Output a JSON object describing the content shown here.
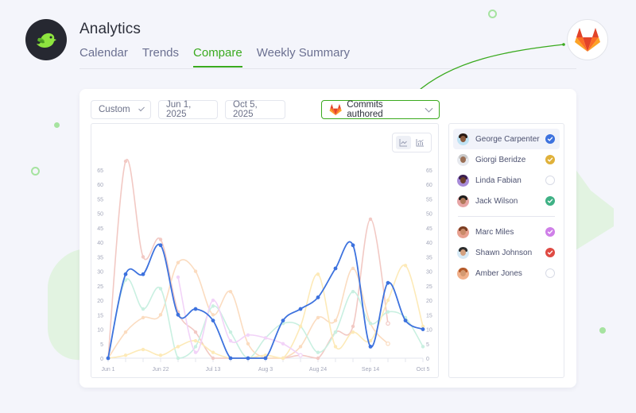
{
  "app": {
    "title": "Analytics",
    "logo_icon": "bird-logo-icon"
  },
  "tabs": [
    {
      "label": "Calendar",
      "active": false
    },
    {
      "label": "Trends",
      "active": false
    },
    {
      "label": "Compare",
      "active": true
    },
    {
      "label": "Weekly Summary",
      "active": false
    }
  ],
  "integration": {
    "icon": "gitlab-icon"
  },
  "controls": {
    "range_select": "Custom",
    "start_date": "Jun 1, 2025",
    "end_date": "Oct 5, 2025",
    "metric_select": "Commits authored",
    "metric_icon": "gitlab-icon"
  },
  "chart_toggle": {
    "options": [
      "line-chart-icon",
      "bar-chart-icon"
    ],
    "active": 0
  },
  "people": [
    {
      "name": "George Carpenter",
      "color": "#3d72de",
      "checked": true,
      "selected": true,
      "skin": "#8a5a3c",
      "hair": "#2a1a12",
      "bg": "#bfe3f4"
    },
    {
      "name": "Giorgi Beridze",
      "color": "#e0b13a",
      "checked": true,
      "selected": false,
      "skin": "#9a6f55",
      "hair": "#c9c9c9",
      "bg": "#e7e9ee"
    },
    {
      "name": "Linda Fabian",
      "color": "#d8dbe6",
      "checked": false,
      "selected": false,
      "skin": "#6b3e2a",
      "hair": "#3a1f4d",
      "bg": "#a88bd8"
    },
    {
      "name": "Jack Wilson",
      "color": "#3fb185",
      "checked": true,
      "selected": false,
      "skin": "#b07a5a",
      "hair": "#1d1d1d",
      "bg": "#e7a5a5"
    },
    {
      "name": "Marc Miles",
      "color": "#cf7fe8",
      "checked": true,
      "selected": false,
      "skin": "#c98a68",
      "hair": "#7a3e22",
      "bg": "#e8a08f"
    },
    {
      "name": "Shawn Johnson",
      "color": "#df4a43",
      "checked": true,
      "selected": false,
      "skin": "#d3a07f",
      "hair": "#2d2d2d",
      "bg": "#d6e9f5"
    },
    {
      "name": "Amber Jones",
      "color": "#d8dbe6",
      "checked": false,
      "selected": false,
      "skin": "#d49a72",
      "hair": "#b45a2a",
      "bg": "#f1b08a"
    }
  ],
  "chart_data": {
    "type": "line",
    "title": "Commits authored",
    "xlabel": "",
    "ylabel": "",
    "ylim": [
      0,
      65
    ],
    "y_ticks": [
      0,
      5,
      10,
      15,
      20,
      25,
      30,
      35,
      40,
      45,
      50,
      55,
      60,
      65
    ],
    "x_tick_labels": [
      "Jun 1",
      "Jun 22",
      "Jul 13",
      "Aug 3",
      "Aug 24",
      "Sep 14",
      "Oct 5"
    ],
    "x": [
      "Jun 1",
      "Jun 8",
      "Jun 15",
      "Jun 22",
      "Jun 29",
      "Jul 6",
      "Jul 13",
      "Jul 20",
      "Jul 27",
      "Aug 3",
      "Aug 10",
      "Aug 17",
      "Aug 24",
      "Aug 31",
      "Sep 7",
      "Sep 14",
      "Sep 21",
      "Sep 28",
      "Oct 5"
    ],
    "grid": false,
    "dual_y_axis": true,
    "series": [
      {
        "name": "George Carpenter",
        "color": "#3d72de",
        "highlighted": true,
        "values": [
          0,
          29,
          29,
          39,
          15,
          17,
          13,
          0,
          0,
          0,
          13,
          17,
          21,
          31,
          39,
          4,
          26,
          13,
          10
        ]
      },
      {
        "name": "Shawn Johnson",
        "color": "#f2c9c4",
        "highlighted": false,
        "values": [
          0,
          68,
          35,
          41,
          16,
          9,
          0,
          0,
          0,
          0,
          0,
          1,
          0,
          9,
          11,
          48,
          12,
          null,
          null
        ]
      },
      {
        "name": "Giorgi Beridze",
        "color": "#fbdcc0",
        "highlighted": false,
        "values": [
          0,
          9,
          14,
          15,
          33,
          30,
          15,
          23,
          5,
          0,
          0,
          4,
          14,
          13,
          31,
          12,
          5,
          null,
          null
        ]
      },
      {
        "name": "Jack Wilson",
        "color": "#c9f0e1",
        "highlighted": false,
        "values": [
          0,
          27,
          17,
          24,
          0,
          4,
          18,
          9,
          0,
          7,
          12,
          11,
          2,
          9,
          23,
          12,
          16,
          14,
          4
        ]
      },
      {
        "name": "Amber Jones",
        "color": "#fdeab8",
        "highlighted": false,
        "values": [
          0,
          1,
          3,
          1,
          4,
          6,
          2,
          0,
          0,
          1,
          0,
          11,
          29,
          4,
          9,
          6,
          20,
          32,
          11
        ]
      },
      {
        "name": "Marc Miles",
        "color": "#f2d3f8",
        "highlighted": false,
        "values": [
          null,
          null,
          null,
          null,
          28,
          2,
          20,
          6,
          8,
          7,
          5,
          1,
          null,
          null,
          null,
          null,
          null,
          null,
          null
        ]
      }
    ]
  }
}
